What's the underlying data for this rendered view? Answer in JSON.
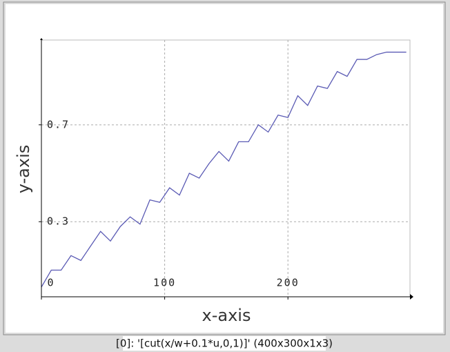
{
  "chart_data": {
    "type": "line",
    "xlabel": "x-axis",
    "ylabel": "y-axis",
    "caption": "[0]: '[cut(x/w+0.1*u,0,1)]' (400x300x1x3)",
    "x": [
      0,
      8,
      16,
      24,
      32,
      40,
      48,
      56,
      64,
      72,
      80,
      88,
      96,
      104,
      112,
      120,
      128,
      136,
      144,
      152,
      160,
      168,
      176,
      184,
      192,
      200,
      208,
      216,
      224,
      232,
      240,
      248,
      256,
      264,
      272,
      280,
      288,
      296
    ],
    "values": [
      0.03,
      0.1,
      0.1,
      0.16,
      0.14,
      0.2,
      0.26,
      0.22,
      0.28,
      0.32,
      0.29,
      0.39,
      0.38,
      0.44,
      0.41,
      0.5,
      0.48,
      0.54,
      0.59,
      0.55,
      0.63,
      0.63,
      0.7,
      0.67,
      0.74,
      0.73,
      0.82,
      0.78,
      0.86,
      0.85,
      0.92,
      0.9,
      0.97,
      0.97,
      0.99,
      1,
      1,
      1
    ],
    "color": "#5a5ab4",
    "xlim": [
      0,
      299
    ],
    "ylim": [
      -0.01,
      1.05
    ],
    "xticks": [
      0,
      100,
      200
    ],
    "yticks": [
      0.3,
      0.7
    ],
    "grid": true
  }
}
